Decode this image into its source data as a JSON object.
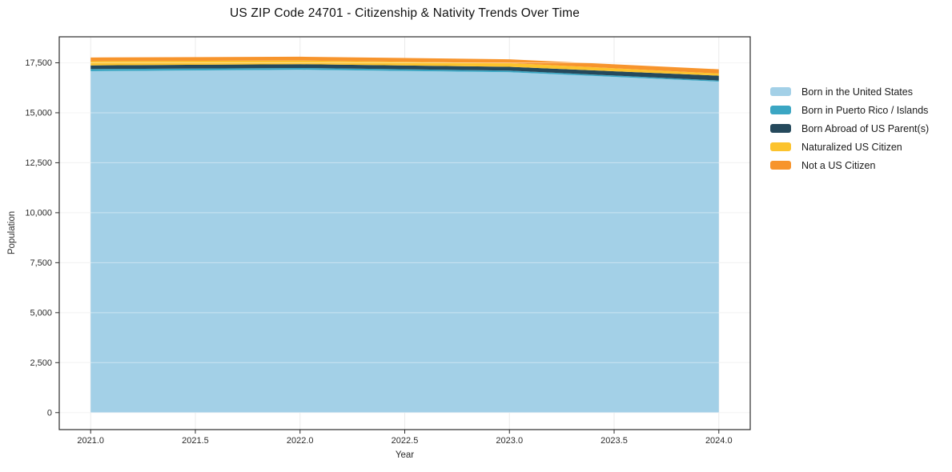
{
  "title": "US ZIP Code 24701 - Citizenship & Nativity Trends Over Time",
  "chart_data": {
    "type": "area",
    "stacked": true,
    "title": "US ZIP Code 24701 - Citizenship & Nativity Trends Over Time",
    "xlabel": "Year",
    "ylabel": "Population",
    "x": [
      2021,
      2022,
      2023,
      2024
    ],
    "series": [
      {
        "name": "Born in the United States",
        "color": "#a3d0e7",
        "values": [
          17080,
          17150,
          17030,
          16560
        ]
      },
      {
        "name": "Born in Puerto Rico / Islands",
        "color": "#3ba6c3",
        "values": [
          105,
          90,
          80,
          55
        ]
      },
      {
        "name": "Born Abroad of US Parent(s)",
        "color": "#25495c",
        "values": [
          185,
          190,
          190,
          240
        ]
      },
      {
        "name": "Naturalized US Citizen",
        "color": "#fcc32d",
        "values": [
          210,
          185,
          185,
          110
        ]
      },
      {
        "name": "Not a US Citizen",
        "color": "#f7942c",
        "values": [
          185,
          190,
          190,
          210
        ]
      }
    ],
    "x_ticks": [
      2021.0,
      2021.5,
      2022.0,
      2022.5,
      2023.0,
      2023.5,
      2024.0
    ],
    "x_tick_labels": [
      "2021.0",
      "2021.5",
      "2022.0",
      "2022.5",
      "2023.0",
      "2023.5",
      "2024.0"
    ],
    "y_ticks": [
      0,
      2500,
      5000,
      7500,
      10000,
      12500,
      15000,
      17500
    ],
    "y_tick_labels": [
      "0",
      "2,500",
      "5,000",
      "7,500",
      "10,000",
      "12,500",
      "15,000",
      "17,500"
    ],
    "xlim": [
      2020.85,
      2024.15
    ],
    "ylim": [
      -850,
      18800
    ],
    "grid": true,
    "legend_position": "right",
    "frame_color": "#2b2b2b",
    "grid_color": "#ebebeb",
    "tick_label_color": "#2b2b2b"
  }
}
